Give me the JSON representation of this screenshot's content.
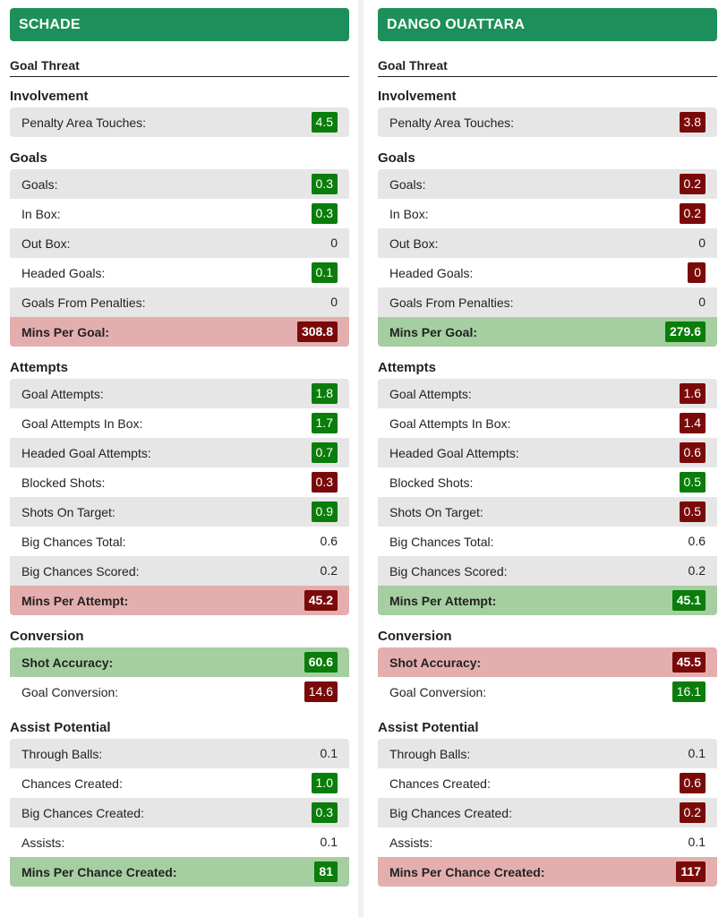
{
  "colors": {
    "header": "#1d8f5a",
    "good_badge": "#0a7d0a",
    "bad_badge": "#7a0a0a",
    "good_row": "#a5cfa1",
    "bad_row": "#e5aeae"
  },
  "players": [
    {
      "name": "SCHADE",
      "subtitle": "Goal Threat",
      "sections": [
        {
          "title": "Involvement",
          "rows": [
            {
              "label": "Penalty Area Touches:",
              "value": "4.5",
              "badge": "green",
              "bg": "shade"
            }
          ]
        },
        {
          "title": "Goals",
          "rows": [
            {
              "label": "Goals:",
              "value": "0.3",
              "badge": "green",
              "bg": "shade"
            },
            {
              "label": "In Box:",
              "value": "0.3",
              "badge": "green",
              "bg": "plain"
            },
            {
              "label": "Out Box:",
              "value": "0",
              "badge": "none",
              "bg": "shade"
            },
            {
              "label": "Headed Goals:",
              "value": "0.1",
              "badge": "green",
              "bg": "plain"
            },
            {
              "label": "Goals From Penalties:",
              "value": "0",
              "badge": "none",
              "bg": "shade"
            },
            {
              "label": "Mins Per Goal:",
              "value": "308.8",
              "badge": "red",
              "bg": "bad"
            }
          ]
        },
        {
          "title": "Attempts",
          "rows": [
            {
              "label": "Goal Attempts:",
              "value": "1.8",
              "badge": "green",
              "bg": "shade"
            },
            {
              "label": "Goal Attempts In Box:",
              "value": "1.7",
              "badge": "green",
              "bg": "plain"
            },
            {
              "label": "Headed Goal Attempts:",
              "value": "0.7",
              "badge": "green",
              "bg": "shade"
            },
            {
              "label": "Blocked Shots:",
              "value": "0.3",
              "badge": "red",
              "bg": "plain"
            },
            {
              "label": "Shots On Target:",
              "value": "0.9",
              "badge": "green",
              "bg": "shade"
            },
            {
              "label": "Big Chances Total:",
              "value": "0.6",
              "badge": "none",
              "bg": "plain"
            },
            {
              "label": "Big Chances Scored:",
              "value": "0.2",
              "badge": "none",
              "bg": "shade"
            },
            {
              "label": "Mins Per Attempt:",
              "value": "45.2",
              "badge": "red",
              "bg": "bad"
            }
          ]
        },
        {
          "title": "Conversion",
          "rows": [
            {
              "label": "Shot Accuracy:",
              "value": "60.6",
              "badge": "green",
              "bg": "good"
            },
            {
              "label": "Goal Conversion:",
              "value": "14.6",
              "badge": "red",
              "bg": "plain"
            }
          ]
        },
        {
          "title": "Assist Potential",
          "rows": [
            {
              "label": "Through Balls:",
              "value": "0.1",
              "badge": "none",
              "bg": "shade"
            },
            {
              "label": "Chances Created:",
              "value": "1.0",
              "badge": "green",
              "bg": "plain"
            },
            {
              "label": "Big Chances Created:",
              "value": "0.3",
              "badge": "green",
              "bg": "shade"
            },
            {
              "label": "Assists:",
              "value": "0.1",
              "badge": "none",
              "bg": "plain"
            },
            {
              "label": "Mins Per Chance Created:",
              "value": "81",
              "badge": "green",
              "bg": "good"
            }
          ]
        }
      ]
    },
    {
      "name": "DANGO OUATTARA",
      "subtitle": "Goal Threat",
      "sections": [
        {
          "title": "Involvement",
          "rows": [
            {
              "label": "Penalty Area Touches:",
              "value": "3.8",
              "badge": "red",
              "bg": "shade"
            }
          ]
        },
        {
          "title": "Goals",
          "rows": [
            {
              "label": "Goals:",
              "value": "0.2",
              "badge": "red",
              "bg": "shade"
            },
            {
              "label": "In Box:",
              "value": "0.2",
              "badge": "red",
              "bg": "plain"
            },
            {
              "label": "Out Box:",
              "value": "0",
              "badge": "none",
              "bg": "shade"
            },
            {
              "label": "Headed Goals:",
              "value": "0",
              "badge": "red",
              "bg": "plain"
            },
            {
              "label": "Goals From Penalties:",
              "value": "0",
              "badge": "none",
              "bg": "shade"
            },
            {
              "label": "Mins Per Goal:",
              "value": "279.6",
              "badge": "green",
              "bg": "good"
            }
          ]
        },
        {
          "title": "Attempts",
          "rows": [
            {
              "label": "Goal Attempts:",
              "value": "1.6",
              "badge": "red",
              "bg": "shade"
            },
            {
              "label": "Goal Attempts In Box:",
              "value": "1.4",
              "badge": "red",
              "bg": "plain"
            },
            {
              "label": "Headed Goal Attempts:",
              "value": "0.6",
              "badge": "red",
              "bg": "shade"
            },
            {
              "label": "Blocked Shots:",
              "value": "0.5",
              "badge": "green",
              "bg": "plain"
            },
            {
              "label": "Shots On Target:",
              "value": "0.5",
              "badge": "red",
              "bg": "shade"
            },
            {
              "label": "Big Chances Total:",
              "value": "0.6",
              "badge": "none",
              "bg": "plain"
            },
            {
              "label": "Big Chances Scored:",
              "value": "0.2",
              "badge": "none",
              "bg": "shade"
            },
            {
              "label": "Mins Per Attempt:",
              "value": "45.1",
              "badge": "green",
              "bg": "good"
            }
          ]
        },
        {
          "title": "Conversion",
          "rows": [
            {
              "label": "Shot Accuracy:",
              "value": "45.5",
              "badge": "red",
              "bg": "bad"
            },
            {
              "label": "Goal Conversion:",
              "value": "16.1",
              "badge": "green",
              "bg": "plain"
            }
          ]
        },
        {
          "title": "Assist Potential",
          "rows": [
            {
              "label": "Through Balls:",
              "value": "0.1",
              "badge": "none",
              "bg": "shade"
            },
            {
              "label": "Chances Created:",
              "value": "0.6",
              "badge": "red",
              "bg": "plain"
            },
            {
              "label": "Big Chances Created:",
              "value": "0.2",
              "badge": "red",
              "bg": "shade"
            },
            {
              "label": "Assists:",
              "value": "0.1",
              "badge": "none",
              "bg": "plain"
            },
            {
              "label": "Mins Per Chance Created:",
              "value": "117",
              "badge": "red",
              "bg": "bad"
            }
          ]
        }
      ]
    }
  ]
}
